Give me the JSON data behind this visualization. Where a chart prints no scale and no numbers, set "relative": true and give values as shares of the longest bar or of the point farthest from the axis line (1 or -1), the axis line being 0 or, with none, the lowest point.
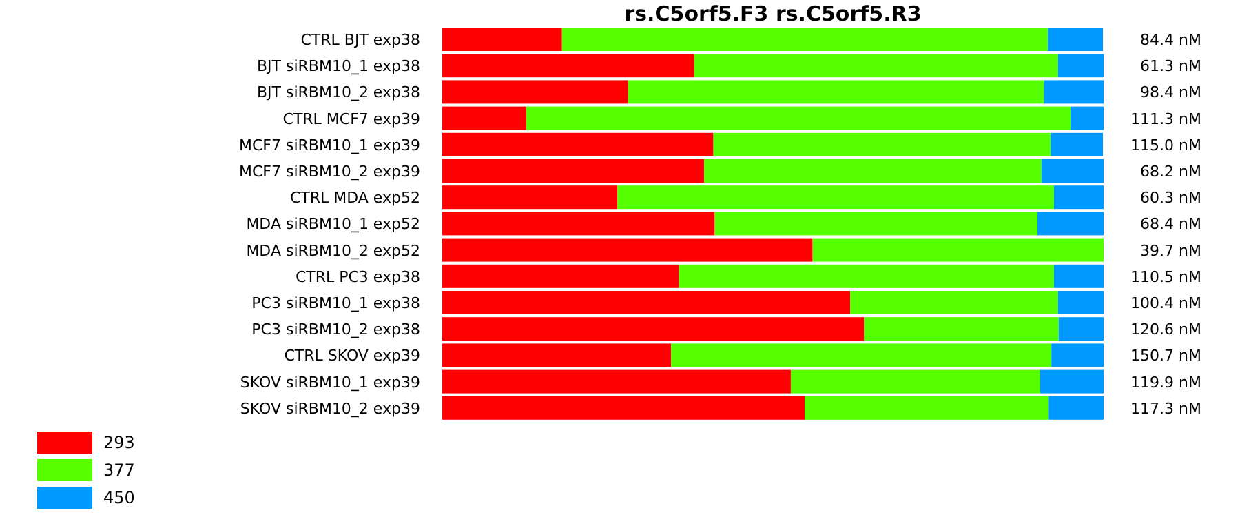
{
  "chart_data": {
    "type": "bar",
    "orientation": "horizontal",
    "stacked": true,
    "relative": true,
    "title": "rs.C5orf5.F3  rs.C5orf5.R3",
    "categories": [
      "CTRL BJT  exp38",
      "BJT siRBM10_1  exp38",
      "BJT siRBM10_2  exp38",
      "CTRL MCF7  exp39",
      "MCF7 siRBM10_1  exp39",
      "MCF7 siRBM10_2  exp39",
      "CTRL MDA  exp52",
      "MDA siRBM10_1 exp52",
      "MDA siRBM10_2 exp52",
      "CTRL PC3 exp38",
      "PC3 siRBM10_1 exp38",
      "PC3 siRBM10_2 exp38",
      "CTRL SKOV  exp39",
      "SKOV siRBM10_1 exp39",
      "SKOV siRBM10_2 exp39"
    ],
    "series": [
      {
        "name": "293",
        "color": "#ff0000",
        "values": [
          0.181,
          0.381,
          0.281,
          0.127,
          0.41,
          0.396,
          0.265,
          0.412,
          0.56,
          0.358,
          0.617,
          0.638,
          0.346,
          0.527,
          0.548
        ]
      },
      {
        "name": "377",
        "color": "#55ff00",
        "values": [
          0.735,
          0.55,
          0.629,
          0.823,
          0.51,
          0.51,
          0.66,
          0.488,
          0.44,
          0.567,
          0.314,
          0.294,
          0.575,
          0.377,
          0.369
        ]
      },
      {
        "name": "450",
        "color": "#0099ff",
        "values": [
          0.083,
          0.069,
          0.09,
          0.05,
          0.079,
          0.094,
          0.075,
          0.1,
          0,
          0.075,
          0.069,
          0.068,
          0.079,
          0.096,
          0.083
        ]
      }
    ],
    "annotations": [
      "84.4 nM",
      "61.3 nM",
      "98.4 nM",
      "111.3 nM",
      "115.0 nM",
      "68.2 nM",
      "60.3 nM",
      "68.4 nM",
      "39.7 nM",
      "110.5 nM",
      "100.4 nM",
      "120.6 nM",
      "150.7 nM",
      "119.9 nM",
      "117.3 nM"
    ],
    "legend": "bottom left"
  }
}
